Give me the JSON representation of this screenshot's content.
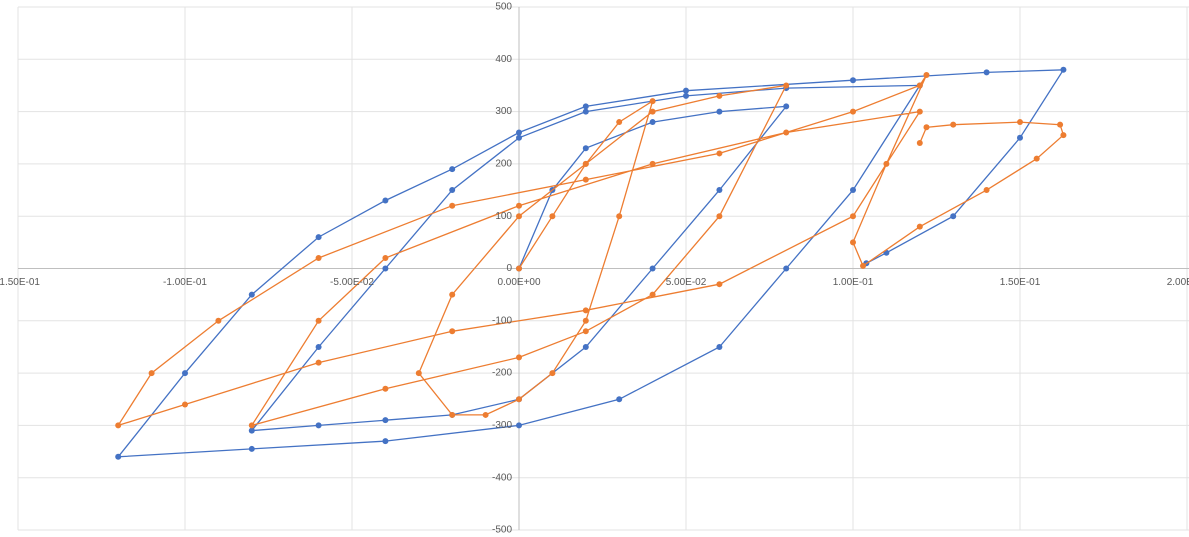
{
  "chart_data": {
    "type": "scatter",
    "grid": true,
    "xlim": [
      -0.15,
      0.2
    ],
    "xticks": [
      {
        "value": -0.15,
        "label": "-1.50E-01"
      },
      {
        "value": -0.1,
        "label": "-1.00E-01"
      },
      {
        "value": -0.05,
        "label": "-5.00E-02"
      },
      {
        "value": 0,
        "label": "0.00E+00"
      },
      {
        "value": 0.05,
        "label": "5.00E-02"
      },
      {
        "value": 0.1,
        "label": "1.00E-01"
      },
      {
        "value": 0.15,
        "label": "1.50E-01"
      },
      {
        "value": 0.2,
        "label": "2.00E-01"
      }
    ],
    "ylim": [
      -500,
      500
    ],
    "yticks": [
      -500,
      -400,
      -300,
      -200,
      -100,
      0,
      100,
      200,
      300,
      400,
      500
    ],
    "series": [
      {
        "color": "#4472c4",
        "x": [
          0,
          0.01,
          0.02,
          0.04,
          0.06,
          0.08,
          0.06,
          0.04,
          0.02,
          0,
          -0.02,
          -0.04,
          -0.06,
          -0.08,
          -0.06,
          -0.04,
          -0.02,
          0,
          0.02,
          0.05,
          0.08,
          0.12,
          0.1,
          0.08,
          0.06,
          0.03,
          0,
          -0.04,
          -0.08,
          -0.12,
          -0.1,
          -0.08,
          -0.06,
          -0.04,
          -0.02,
          0,
          0.02,
          0.05,
          0.1,
          0.14,
          0.163,
          0.15,
          0.13,
          0.11,
          0.104
        ],
        "values": [
          0,
          150,
          230,
          280,
          300,
          310,
          150,
          0,
          -150,
          -250,
          -280,
          -290,
          -300,
          -310,
          -150,
          0,
          150,
          250,
          300,
          330,
          345,
          350,
          150,
          0,
          -150,
          -250,
          -300,
          -330,
          -345,
          -360,
          -200,
          -50,
          60,
          130,
          190,
          260,
          310,
          340,
          360,
          375,
          380,
          250,
          100,
          30,
          10
        ]
      },
      {
        "color": "#ed7d31",
        "x": [
          0,
          0.01,
          0.02,
          0.03,
          0.04,
          0.03,
          0.02,
          0.01,
          0,
          -0.01,
          -0.02,
          -0.03,
          -0.02,
          0,
          0.02,
          0.04,
          0.06,
          0.08,
          0.06,
          0.04,
          0.02,
          0,
          -0.04,
          -0.08,
          -0.06,
          -0.04,
          0,
          0.04,
          0.08,
          0.12,
          0.1,
          0.06,
          0.02,
          -0.02,
          -0.06,
          -0.1,
          -0.12,
          -0.11,
          -0.09,
          -0.06,
          -0.02,
          0.02,
          0.06,
          0.1,
          0.12,
          0.122,
          0.11,
          0.1,
          0.103,
          0.12,
          0.14,
          0.155,
          0.163,
          0.162,
          0.15,
          0.13,
          0.122,
          0.12
        ],
        "values": [
          0,
          100,
          200,
          280,
          320,
          100,
          -100,
          -200,
          -250,
          -280,
          -280,
          -200,
          -50,
          100,
          200,
          300,
          330,
          350,
          100,
          -50,
          -120,
          -170,
          -230,
          -300,
          -100,
          20,
          120,
          200,
          260,
          300,
          100,
          -30,
          -80,
          -120,
          -180,
          -260,
          -300,
          -200,
          -100,
          20,
          120,
          170,
          220,
          300,
          350,
          370,
          200,
          50,
          5,
          80,
          150,
          210,
          255,
          275,
          280,
          275,
          270,
          240
        ]
      }
    ]
  }
}
